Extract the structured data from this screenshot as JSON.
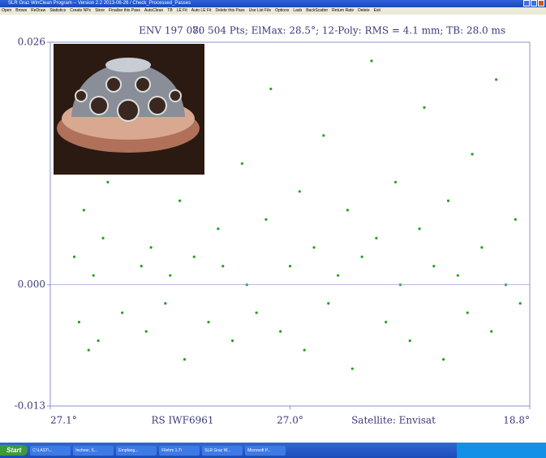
{
  "window": {
    "title": "SLR Graz WinClean Program -- Version 2.2 2013-06-26 / Check_Processed_Passes",
    "menu": [
      "Open",
      "Brows",
      "ReDraw",
      "Statistics",
      "Create NPs",
      "Store",
      "Finalise this Pass",
      "AutoClean",
      "TB",
      "LE Fit",
      "Auto LE Fit",
      "Delete this Pass",
      "Use List File",
      "Options",
      "Lasb",
      "BackScatter",
      "Return Rate",
      "Delete",
      "Exit"
    ]
  },
  "chart_data": {
    "type": "scatter",
    "title": "ENV 197 08:",
    "subtitle": "70 504 Pts; ElMax: 28.5°; 12-Poly: RMS = 4.1 mm; TB: 28.0 ms",
    "annotations": [
      "RS IWF6961",
      "Satellite: Envisat"
    ],
    "color": "#22a022",
    "xlim": [
      0,
      1
    ],
    "xticks": [
      {
        "value": 0,
        "label": "27.1°"
      },
      {
        "value": 0.5,
        "label": "27.0°"
      },
      {
        "value": 1,
        "label": "18.8°"
      }
    ],
    "ylim": [
      -0.013,
      0.026
    ],
    "yticks": [
      0.026,
      {
        "value": 0,
        "label": "0.000"
      },
      -0.013
    ],
    "x": [
      0.05,
      0.06,
      0.07,
      0.08,
      0.09,
      0.1,
      0.11,
      0.12,
      0.15,
      0.17,
      0.19,
      0.2,
      0.21,
      0.22,
      0.24,
      0.25,
      0.27,
      0.28,
      0.3,
      0.31,
      0.33,
      0.35,
      0.36,
      0.38,
      0.4,
      0.41,
      0.43,
      0.45,
      0.46,
      0.48,
      0.5,
      0.52,
      0.53,
      0.55,
      0.57,
      0.58,
      0.6,
      0.62,
      0.63,
      0.65,
      0.67,
      0.68,
      0.7,
      0.72,
      0.73,
      0.75,
      0.77,
      0.78,
      0.8,
      0.82,
      0.83,
      0.85,
      0.87,
      0.88,
      0.9,
      0.92,
      0.93,
      0.95,
      0.97,
      0.98
    ],
    "values": [
      0.003,
      -0.004,
      0.008,
      -0.007,
      0.001,
      -0.006,
      0.005,
      0.011,
      -0.003,
      0.012,
      0.002,
      -0.005,
      0.004,
      0.015,
      -0.002,
      0.001,
      0.009,
      -0.008,
      0.003,
      0.018,
      -0.004,
      0.006,
      0.002,
      -0.006,
      0.013,
      0.0,
      -0.003,
      0.007,
      0.021,
      -0.005,
      0.002,
      0.01,
      -0.007,
      0.004,
      0.016,
      -0.002,
      0.001,
      0.008,
      -0.009,
      0.003,
      0.024,
      0.005,
      -0.004,
      0.011,
      0.0,
      -0.006,
      0.006,
      0.019,
      0.002,
      -0.008,
      0.009,
      0.001,
      -0.003,
      0.014,
      0.004,
      -0.005,
      0.022,
      0.0,
      0.007,
      -0.002
    ]
  },
  "taskbar": {
    "start": "Start",
    "items": [
      "C:\\LAST\\...",
      "Inchner, S...",
      "Empfang...",
      "Filehm 1.7\\",
      "SLR Graz W...",
      "Microsoft P..."
    ]
  }
}
